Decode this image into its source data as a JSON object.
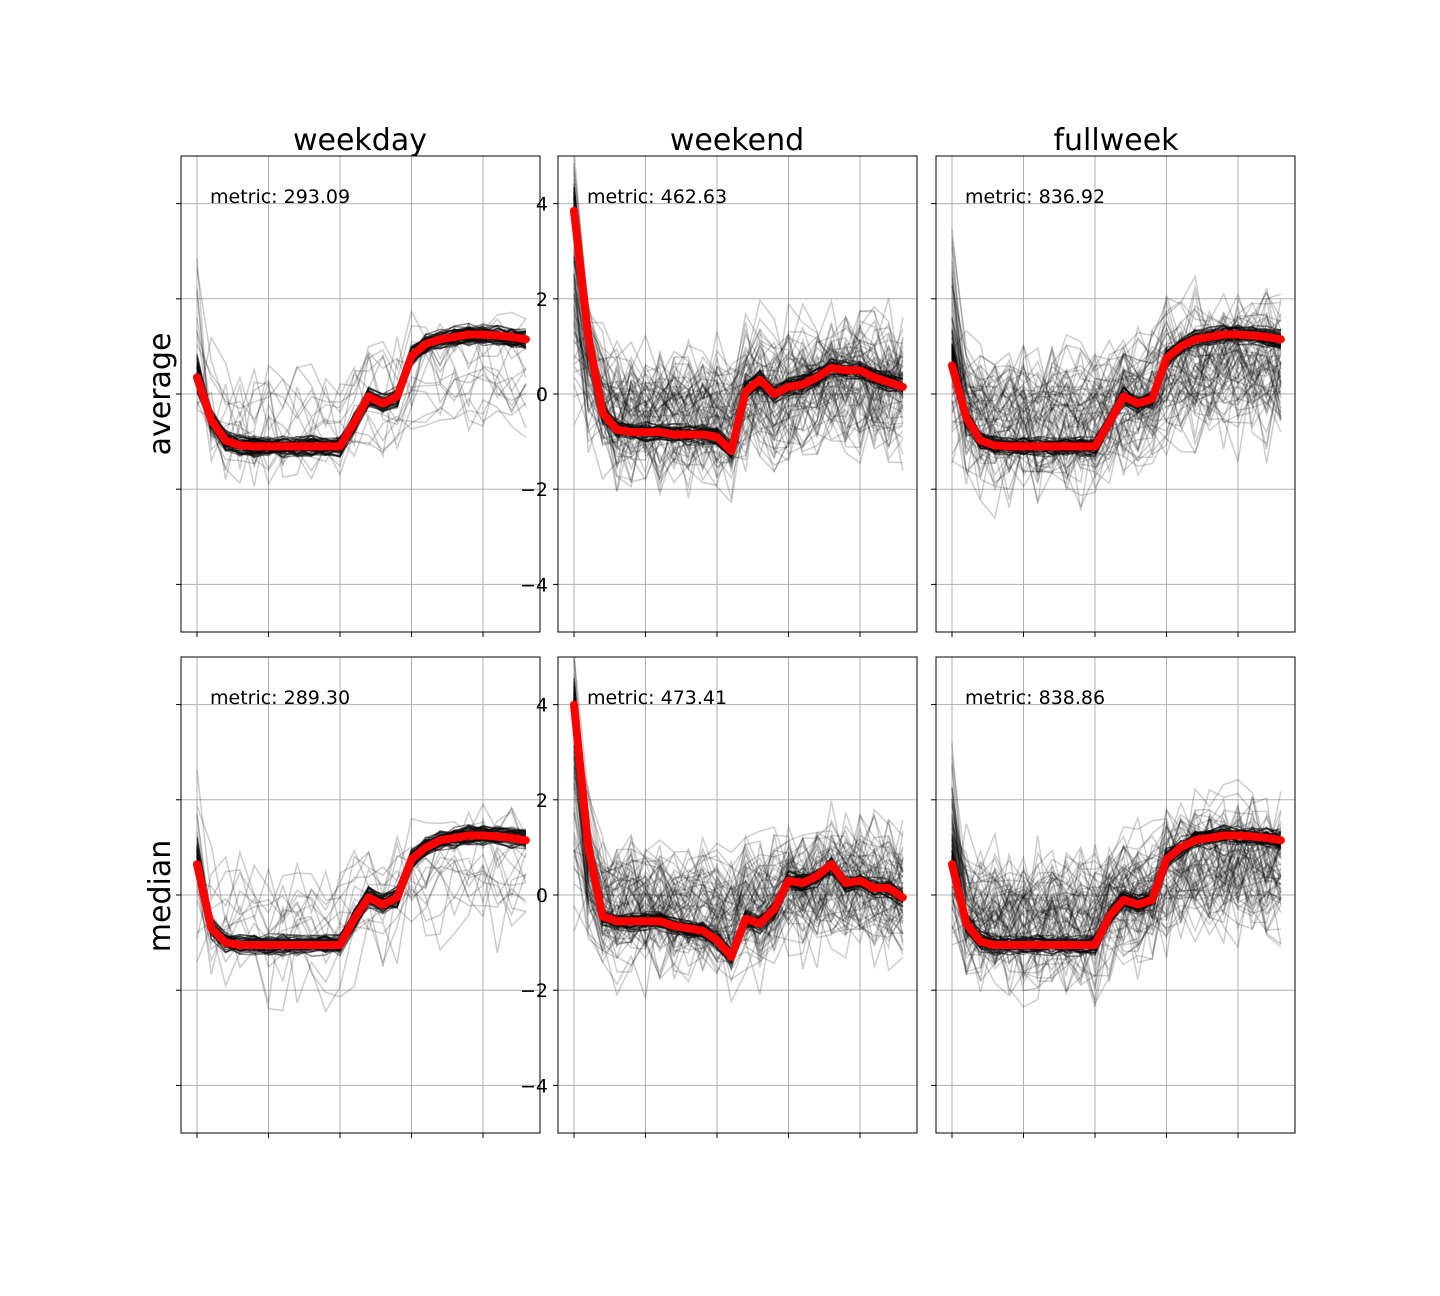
{
  "figure": {
    "columns": [
      "weekday",
      "weekend",
      "fullweek"
    ],
    "rows": [
      "average",
      "median"
    ]
  },
  "chart_data": [
    {
      "type": "line",
      "row": "average",
      "column": "weekday",
      "annotation": "metric: 293.09",
      "ylim": [
        -5,
        5
      ],
      "yticks": [
        -4,
        -2,
        0,
        2,
        4
      ],
      "grid": true,
      "ytick_labels_shown": false,
      "x": [
        0,
        1,
        2,
        3,
        4,
        5,
        6,
        7,
        8,
        9,
        10,
        11,
        12,
        13,
        14,
        15,
        16,
        17,
        18,
        19,
        20,
        21,
        22,
        23
      ],
      "background_series_color": "#000000",
      "highlight_color": "#ff0000",
      "highlight": [
        0.35,
        -0.55,
        -0.98,
        -1.08,
        -1.1,
        -1.1,
        -1.1,
        -1.1,
        -1.1,
        -1.1,
        -1.1,
        -0.6,
        -0.05,
        -0.2,
        -0.05,
        0.8,
        1.05,
        1.15,
        1.2,
        1.25,
        1.25,
        1.23,
        1.2,
        1.15
      ]
    },
    {
      "type": "line",
      "row": "average",
      "column": "weekend",
      "annotation": "metric: 462.63",
      "ylim": [
        -5,
        5
      ],
      "yticks": [
        -4,
        -2,
        0,
        2,
        4
      ],
      "grid": true,
      "ytick_labels_shown": true,
      "x": [
        0,
        1,
        2,
        3,
        4,
        5,
        6,
        7,
        8,
        9,
        10,
        11,
        12,
        13,
        14,
        15,
        16,
        17,
        18,
        19,
        20,
        21,
        22,
        23
      ],
      "background_series_color": "#000000",
      "highlight_color": "#ff0000",
      "highlight": [
        3.85,
        1.2,
        -0.4,
        -0.75,
        -0.8,
        -0.8,
        -0.8,
        -0.85,
        -0.85,
        -0.85,
        -0.9,
        -1.2,
        0.05,
        0.3,
        0.0,
        0.15,
        0.2,
        0.35,
        0.55,
        0.5,
        0.5,
        0.35,
        0.25,
        0.15
      ]
    },
    {
      "type": "line",
      "row": "average",
      "column": "fullweek",
      "annotation": "metric: 836.92",
      "ylim": [
        -5,
        5
      ],
      "yticks": [
        -4,
        -2,
        0,
        2,
        4
      ],
      "grid": true,
      "ytick_labels_shown": false,
      "x": [
        0,
        1,
        2,
        3,
        4,
        5,
        6,
        7,
        8,
        9,
        10,
        11,
        12,
        13,
        14,
        15,
        16,
        17,
        18,
        19,
        20,
        21,
        22,
        23
      ],
      "background_series_color": "#000000",
      "highlight_color": "#ff0000",
      "highlight": [
        0.6,
        -0.5,
        -0.98,
        -1.08,
        -1.1,
        -1.1,
        -1.1,
        -1.1,
        -1.1,
        -1.1,
        -1.1,
        -0.6,
        -0.05,
        -0.2,
        -0.1,
        0.75,
        1.0,
        1.15,
        1.2,
        1.25,
        1.25,
        1.23,
        1.2,
        1.15
      ]
    },
    {
      "type": "line",
      "row": "median",
      "column": "weekday",
      "annotation": "metric: 289.30",
      "ylim": [
        -5,
        5
      ],
      "yticks": [
        -4,
        -2,
        0,
        2,
        4
      ],
      "grid": true,
      "ytick_labels_shown": false,
      "x": [
        0,
        1,
        2,
        3,
        4,
        5,
        6,
        7,
        8,
        9,
        10,
        11,
        12,
        13,
        14,
        15,
        16,
        17,
        18,
        19,
        20,
        21,
        22,
        23
      ],
      "background_series_color": "#000000",
      "highlight_color": "#ff0000",
      "highlight": [
        0.65,
        -0.7,
        -1.0,
        -1.05,
        -1.05,
        -1.05,
        -1.05,
        -1.05,
        -1.05,
        -1.05,
        -1.05,
        -0.5,
        -0.05,
        -0.2,
        -0.05,
        0.75,
        1.0,
        1.15,
        1.2,
        1.25,
        1.25,
        1.23,
        1.2,
        1.15
      ]
    },
    {
      "type": "line",
      "row": "median",
      "column": "weekend",
      "annotation": "metric: 473.41",
      "ylim": [
        -5,
        5
      ],
      "yticks": [
        -4,
        -2,
        0,
        2,
        4
      ],
      "grid": true,
      "ytick_labels_shown": true,
      "x": [
        0,
        1,
        2,
        3,
        4,
        5,
        6,
        7,
        8,
        9,
        10,
        11,
        12,
        13,
        14,
        15,
        16,
        17,
        18,
        19,
        20,
        21,
        22,
        23
      ],
      "background_series_color": "#000000",
      "highlight_color": "#ff0000",
      "highlight": [
        4.0,
        1.0,
        -0.45,
        -0.55,
        -0.55,
        -0.55,
        -0.55,
        -0.65,
        -0.7,
        -0.75,
        -0.95,
        -1.3,
        -0.5,
        -0.6,
        -0.3,
        0.3,
        0.25,
        0.4,
        0.65,
        0.25,
        0.3,
        0.15,
        0.15,
        -0.05
      ]
    },
    {
      "type": "line",
      "row": "median",
      "column": "fullweek",
      "annotation": "metric: 838.86",
      "ylim": [
        -5,
        5
      ],
      "yticks": [
        -4,
        -2,
        0,
        2,
        4
      ],
      "grid": true,
      "ytick_labels_shown": false,
      "x": [
        0,
        1,
        2,
        3,
        4,
        5,
        6,
        7,
        8,
        9,
        10,
        11,
        12,
        13,
        14,
        15,
        16,
        17,
        18,
        19,
        20,
        21,
        22,
        23
      ],
      "background_series_color": "#000000",
      "highlight_color": "#ff0000",
      "highlight": [
        0.65,
        -0.6,
        -0.98,
        -1.05,
        -1.05,
        -1.05,
        -1.05,
        -1.05,
        -1.05,
        -1.05,
        -1.05,
        -0.45,
        -0.1,
        -0.2,
        -0.1,
        0.75,
        1.0,
        1.15,
        1.2,
        1.25,
        1.25,
        1.23,
        1.2,
        1.15
      ]
    }
  ]
}
